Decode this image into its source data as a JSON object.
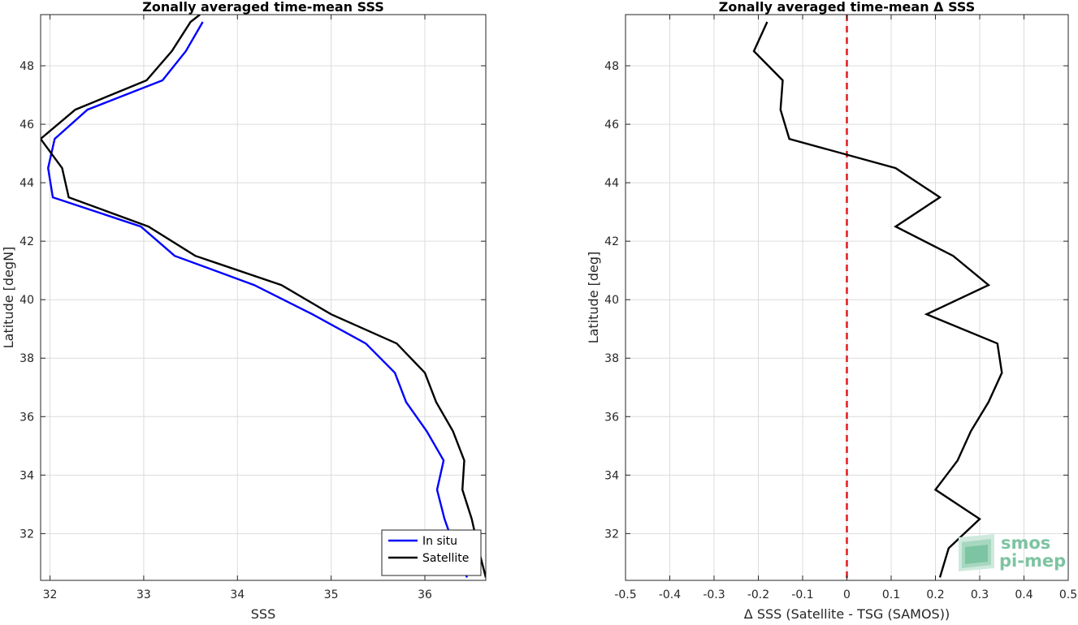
{
  "chart_data": [
    {
      "type": "line",
      "title": "Zonally averaged time-mean SSS",
      "xlabel": "SSS",
      "ylabel": "Latitude [degN]",
      "xlim": [
        31.9,
        36.65
      ],
      "ylim": [
        30.4,
        49.75
      ],
      "xticks": [
        32,
        33,
        34,
        35,
        36
      ],
      "yticks": [
        32,
        34,
        36,
        38,
        40,
        42,
        44,
        46,
        48
      ],
      "grid": true,
      "legend_position": "bottom-right",
      "series": [
        {
          "name": "In situ",
          "color": "#0000ff",
          "y": [
            30.5,
            31.5,
            32.5,
            33.5,
            34.5,
            35.5,
            36.5,
            37.5,
            38.5,
            39.5,
            40.5,
            41.5,
            42.5,
            43.5,
            44.5,
            45.5,
            46.5,
            47.5,
            48.5,
            49.5
          ],
          "x": [
            36.45,
            36.32,
            36.21,
            36.13,
            36.2,
            36.02,
            35.8,
            35.68,
            35.37,
            34.8,
            34.18,
            33.33,
            32.97,
            32.03,
            31.98,
            32.05,
            32.4,
            33.2,
            33.45,
            33.63
          ]
        },
        {
          "name": "Satellite",
          "color": "#000000",
          "y": [
            30.5,
            31.5,
            32.5,
            33.5,
            34.5,
            35.5,
            36.5,
            37.5,
            38.5,
            39.5,
            40.5,
            41.5,
            42.5,
            43.5,
            44.5,
            45.5,
            46.5,
            47.5,
            48.5,
            49.5,
            49.75
          ],
          "x": [
            36.65,
            36.57,
            36.5,
            36.4,
            36.42,
            36.3,
            36.12,
            36.0,
            35.7,
            35.0,
            34.47,
            33.55,
            33.05,
            32.2,
            32.13,
            31.9,
            32.27,
            33.03,
            33.3,
            33.5,
            33.6
          ]
        }
      ]
    },
    {
      "type": "line",
      "title": "Zonally averaged time-mean Δ SSS",
      "xlabel": "Δ SSS (Satellite - TSG (SAMOS))",
      "ylabel": "Latitude [deg]",
      "xlim": [
        -0.5,
        0.5
      ],
      "ylim": [
        30.4,
        49.75
      ],
      "xticks": [
        -0.5,
        -0.4,
        -0.3,
        -0.2,
        -0.1,
        0,
        0.1,
        0.2,
        0.3,
        0.4,
        0.5
      ],
      "yticks": [
        32,
        34,
        36,
        38,
        40,
        42,
        44,
        46,
        48
      ],
      "grid": true,
      "reference_line": {
        "x": 0,
        "color": "#e41a1c",
        "style": "dashed"
      },
      "series": [
        {
          "color": "#000000",
          "y": [
            30.5,
            31.5,
            32.5,
            33.5,
            34.5,
            35.5,
            36.5,
            37.5,
            38.5,
            39.5,
            40.5,
            41.5,
            42.5,
            43.5,
            44.5,
            45.5,
            46.5,
            47.5,
            48.5,
            49.5
          ],
          "x": [
            0.21,
            0.23,
            0.3,
            0.2,
            0.25,
            0.28,
            0.32,
            0.35,
            0.34,
            0.18,
            0.32,
            0.24,
            0.11,
            0.21,
            0.11,
            -0.13,
            -0.15,
            -0.145,
            -0.21,
            -0.18
          ]
        }
      ]
    }
  ],
  "logo": {
    "line1": "smos",
    "line2": "pi-mep",
    "color": "#7dc4a2"
  }
}
